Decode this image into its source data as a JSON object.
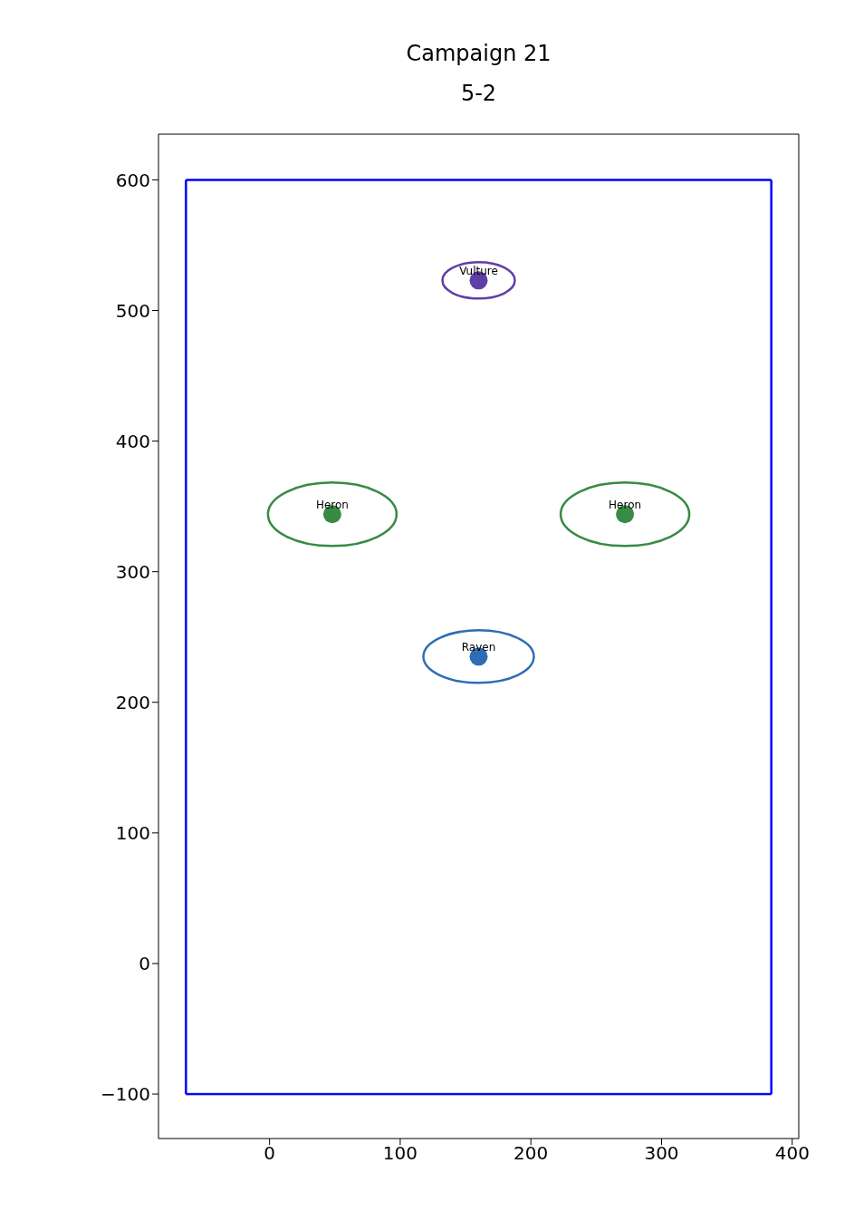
{
  "chart_data": {
    "type": "scatter",
    "title": "Campaign 21",
    "subtitle": "5-2",
    "xlim": [
      -85,
      405
    ],
    "ylim": [
      -134,
      635
    ],
    "xticks": [
      0,
      100,
      200,
      300,
      400
    ],
    "yticks": [
      -100,
      0,
      100,
      200,
      300,
      400,
      500,
      600
    ],
    "marker": "circle",
    "series": [
      {
        "type": "line",
        "color": "#0000ff",
        "marker": "none",
        "x": [
          -64,
          384
        ],
        "values": [
          -100,
          -100
        ]
      },
      {
        "type": "line",
        "color": "#0000ff",
        "marker": "none",
        "x": [
          -64,
          384
        ],
        "values": [
          600,
          600
        ]
      },
      {
        "type": "line",
        "color": "#0000ff",
        "marker": "none",
        "x": [
          -64,
          -64
        ],
        "values": [
          -100,
          600
        ]
      },
      {
        "type": "line",
        "color": "#0000ff",
        "marker": "none",
        "x": [
          384,
          384
        ],
        "values": [
          -100,
          600
        ]
      },
      {
        "name": "Vulture",
        "color": "#5e3fa8",
        "x": [
          160
        ],
        "values": [
          523
        ]
      },
      {
        "name": "Heron",
        "color": "#388a44",
        "x": [
          48,
          272
        ],
        "values": [
          344,
          344
        ]
      },
      {
        "name": "Raven",
        "color": "#2e6db4",
        "x": [
          160
        ],
        "values": [
          235
        ]
      }
    ]
  }
}
